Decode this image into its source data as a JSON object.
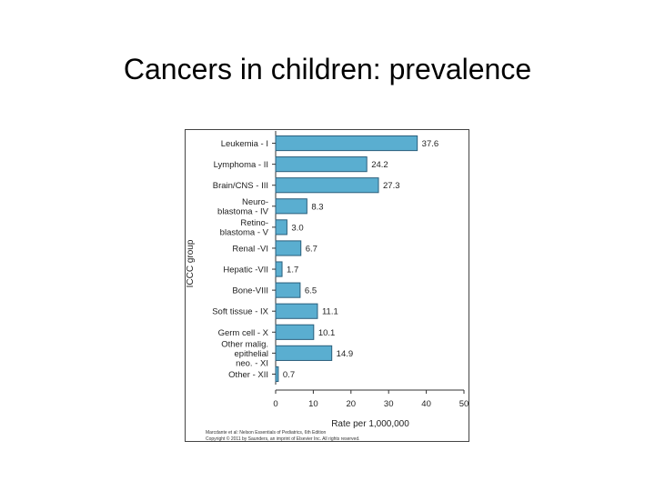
{
  "slide": {
    "title": "Cancers in children: prevalence"
  },
  "credit": {
    "line1": "Marcdante et al: Nelson Essentials of Pediatrics, 6th Edition",
    "line2": "Copyright © 2011 by Saunders, an imprint of Elsevier Inc. All rights reserved."
  },
  "chart_data": {
    "type": "bar",
    "orientation": "horizontal",
    "categories": [
      [
        "Leukemia - I"
      ],
      [
        "Lymphoma - II"
      ],
      [
        "Brain/CNS - III"
      ],
      [
        "Neuro-",
        "blastoma - IV"
      ],
      [
        "Retino-",
        "blastoma - V"
      ],
      [
        "Renal -VI"
      ],
      [
        "Hepatic -VII"
      ],
      [
        "Bone-VIII"
      ],
      [
        "Soft tissue - IX"
      ],
      [
        "Germ cell - X"
      ],
      [
        "Other malig.",
        "epithelial",
        "neo. - XI"
      ],
      [
        "Other - XII"
      ]
    ],
    "values": [
      37.6,
      24.2,
      27.3,
      8.3,
      3.0,
      6.7,
      1.7,
      6.5,
      11.1,
      10.1,
      14.9,
      0.7
    ],
    "value_labels": [
      "37.6",
      "24.2",
      "27.3",
      "8.3",
      "3.0",
      "6.7",
      "1.7",
      "6.5",
      "11.1",
      "10.1",
      "14.9",
      "0.7"
    ],
    "xlim": [
      0,
      50
    ],
    "xticks": [
      0,
      10,
      20,
      30,
      40,
      50
    ],
    "xlabel": "Rate per 1,000,000",
    "ylabel": "ICCC group",
    "grid": false,
    "colors": {
      "bar_fill": "#5aaed0",
      "bar_stroke": "#2b5f7c",
      "axis": "#333333"
    }
  }
}
